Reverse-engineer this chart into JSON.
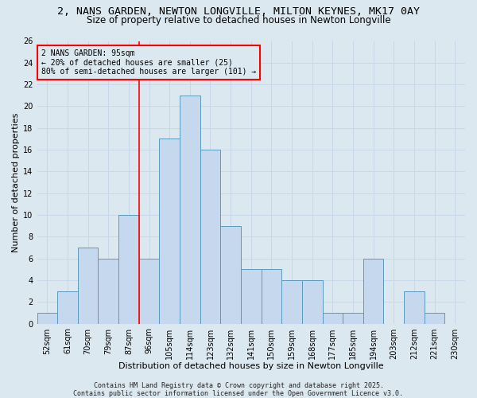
{
  "title1": "2, NANS GARDEN, NEWTON LONGVILLE, MILTON KEYNES, MK17 0AY",
  "title2": "Size of property relative to detached houses in Newton Longville",
  "xlabel": "Distribution of detached houses by size in Newton Longville",
  "ylabel": "Number of detached properties",
  "footer": "Contains HM Land Registry data © Crown copyright and database right 2025.\nContains public sector information licensed under the Open Government Licence v3.0.",
  "bins": [
    "52sqm",
    "61sqm",
    "70sqm",
    "79sqm",
    "87sqm",
    "96sqm",
    "105sqm",
    "114sqm",
    "123sqm",
    "132sqm",
    "141sqm",
    "150sqm",
    "159sqm",
    "168sqm",
    "177sqm",
    "185sqm",
    "194sqm",
    "203sqm",
    "212sqm",
    "221sqm",
    "230sqm"
  ],
  "values": [
    1,
    3,
    7,
    6,
    10,
    6,
    17,
    21,
    16,
    9,
    5,
    5,
    4,
    4,
    1,
    1,
    6,
    0,
    3,
    1,
    0
  ],
  "bar_color": "#c5d8ed",
  "bar_edge_color": "#5b9abf",
  "grid_color": "#c8d8e8",
  "background_color": "#dce8f0",
  "vline_color": "red",
  "vline_x_index": 4.5,
  "annotation_text": "2 NANS GARDEN: 95sqm\n← 20% of detached houses are smaller (25)\n80% of semi-detached houses are larger (101) →",
  "ylim": [
    0,
    26
  ],
  "yticks": [
    0,
    2,
    4,
    6,
    8,
    10,
    12,
    14,
    16,
    18,
    20,
    22,
    24,
    26
  ],
  "title1_fontsize": 9.5,
  "title2_fontsize": 8.5,
  "xlabel_fontsize": 8,
  "ylabel_fontsize": 8,
  "tick_fontsize": 7,
  "ann_fontsize": 7,
  "footer_fontsize": 6
}
